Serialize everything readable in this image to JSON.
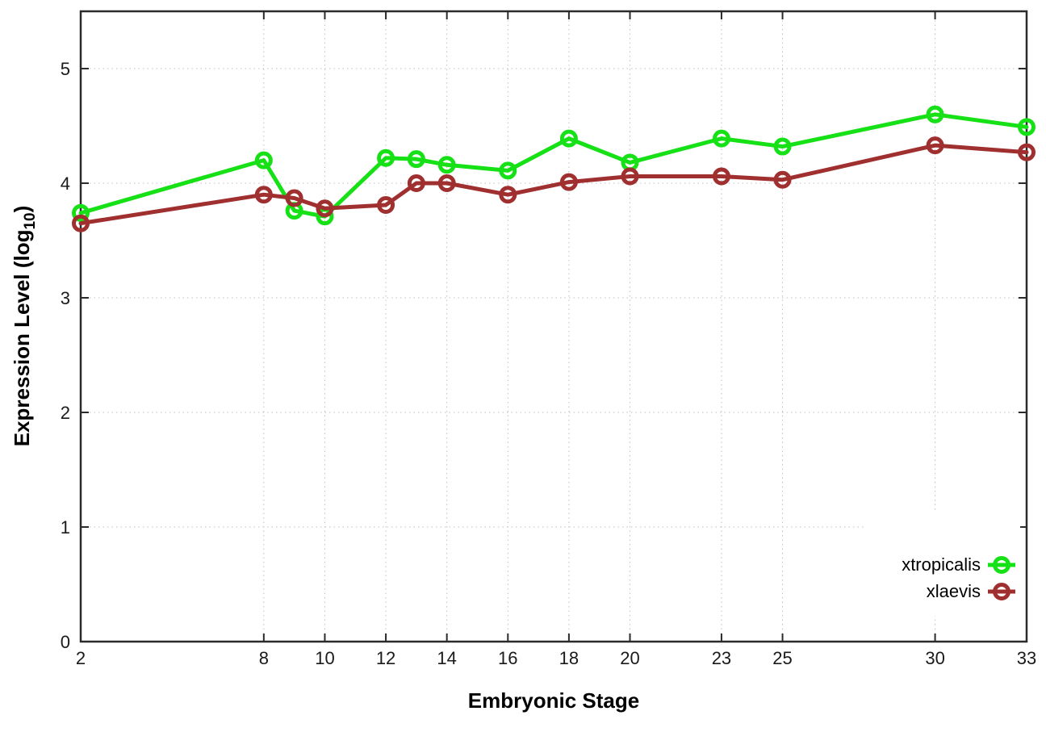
{
  "chart_data": {
    "type": "line",
    "title": "",
    "xlabel": "Embryonic Stage",
    "ylabel": "Expression Level (log10)",
    "ylabel_main": "Expression Level (log",
    "ylabel_sub": "10",
    "ylabel_suffix": ")",
    "x": [
      2,
      8,
      9,
      10,
      12,
      13,
      14,
      16,
      18,
      20,
      23,
      25,
      30,
      33
    ],
    "xtick_labels": [
      2,
      8,
      10,
      12,
      14,
      16,
      18,
      20,
      23,
      25,
      30,
      33
    ],
    "ytick_labels": [
      0,
      1,
      2,
      3,
      4,
      5
    ],
    "xlim": [
      2,
      33
    ],
    "ylim": [
      0,
      5.5
    ],
    "grid": true,
    "legend_position": "bottom-right",
    "series": [
      {
        "name": "xtropicalis",
        "color": "#16e016",
        "values": [
          3.74,
          4.2,
          3.76,
          3.71,
          4.22,
          4.21,
          4.16,
          4.11,
          4.39,
          4.18,
          4.39,
          4.32,
          4.6,
          4.49
        ]
      },
      {
        "name": "xlaevis",
        "color": "#a02f2f",
        "values": [
          3.65,
          3.9,
          3.87,
          3.78,
          3.81,
          4.0,
          4.0,
          3.9,
          4.01,
          4.06,
          4.06,
          4.03,
          4.33,
          4.27
        ]
      }
    ]
  },
  "style": {
    "grid_color": "#c0c0c0",
    "border_color": "#2b2b2b",
    "marker_shape": "open-circle"
  }
}
